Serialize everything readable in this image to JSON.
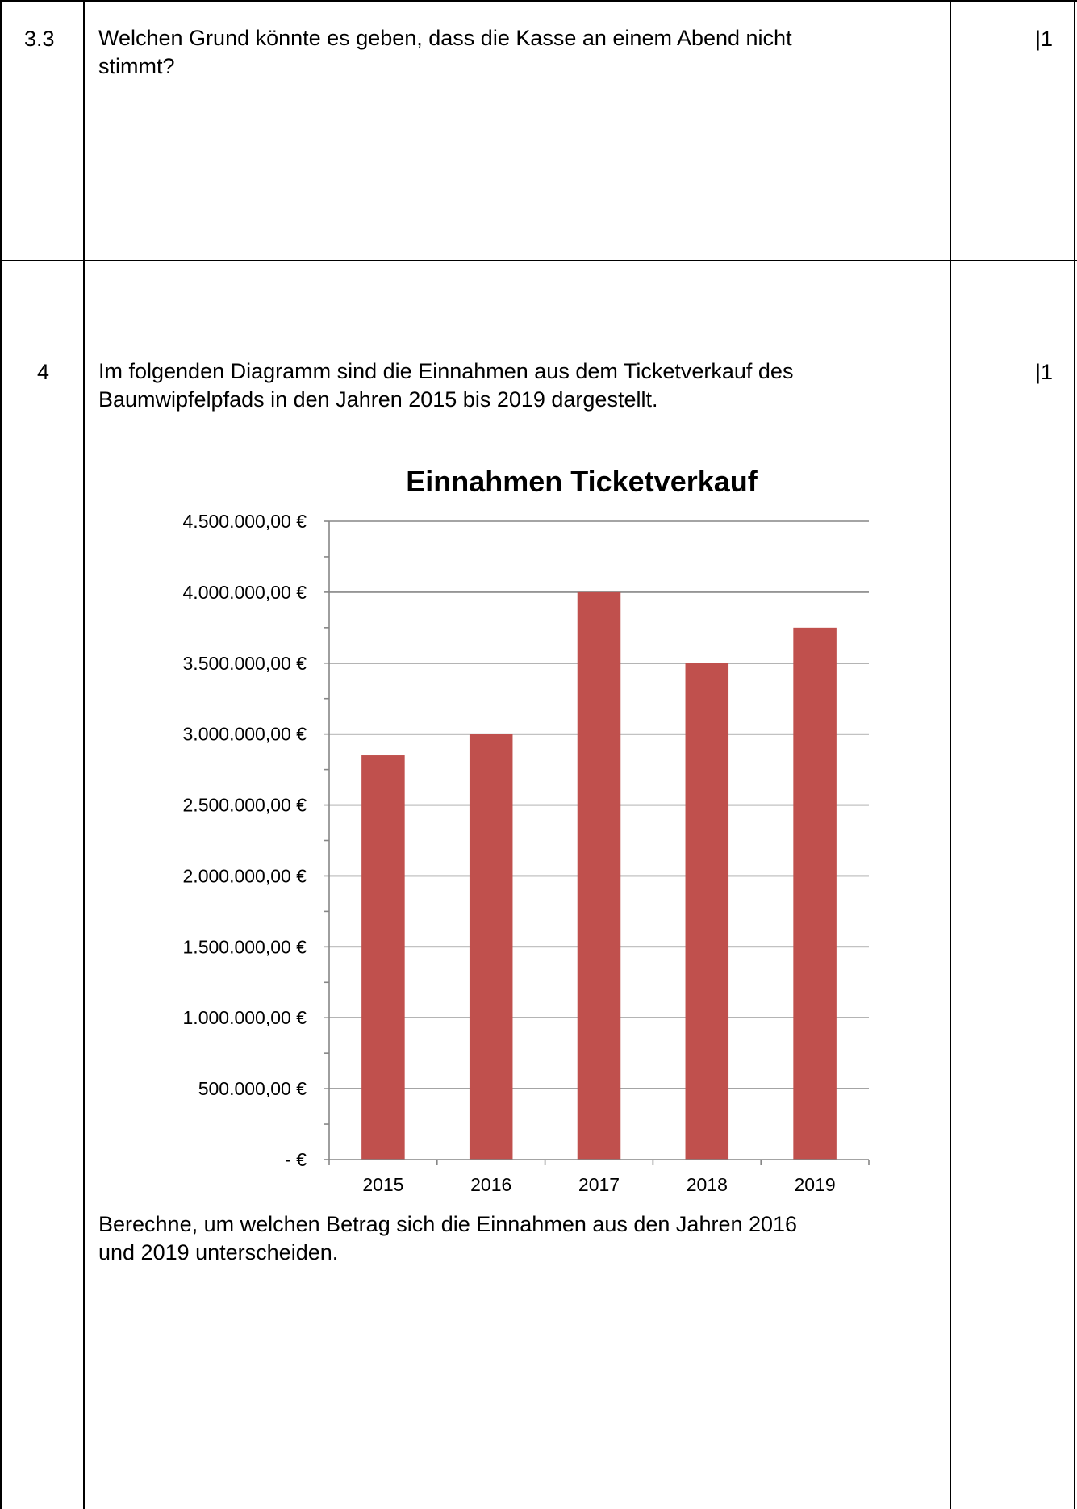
{
  "rows": [
    {
      "number": "3.3",
      "lines": [
        "Welchen Grund könnte es geben, dass die Kasse an einem Abend nicht",
        "stimmt?"
      ],
      "points": "|1"
    },
    {
      "number": "4",
      "lines": [
        "Im folgenden Diagramm sind die Einnahmen aus dem Ticketverkauf des",
        "Baumwipfelpfads in den Jahren 2015 bis 2019 dargestellt."
      ],
      "after_lines": [
        "Berechne, um welchen Betrag sich die Einnahmen aus den Jahren 2016",
        "und 2019 unterscheiden."
      ],
      "points": "|1"
    }
  ],
  "chart_data": {
    "type": "bar",
    "title": "Einnahmen Ticketverkauf",
    "categories": [
      "2015",
      "2016",
      "2017",
      "2018",
      "2019"
    ],
    "values": [
      2850000,
      3000000,
      4000000,
      3500000,
      3750000
    ],
    "y_tick_labels": [
      "-  €",
      "500.000,00 €",
      "1.000.000,00 €",
      "1.500.000,00 €",
      "2.000.000,00 €",
      "2.500.000,00 €",
      "3.000.000,00 €",
      "3.500.000,00 €",
      "4.000.000,00 €",
      "4.500.000,00 €"
    ],
    "ylim": [
      0,
      4500000
    ],
    "grid": true,
    "bar_color": "#c0504d",
    "grid_color": "#868686"
  }
}
